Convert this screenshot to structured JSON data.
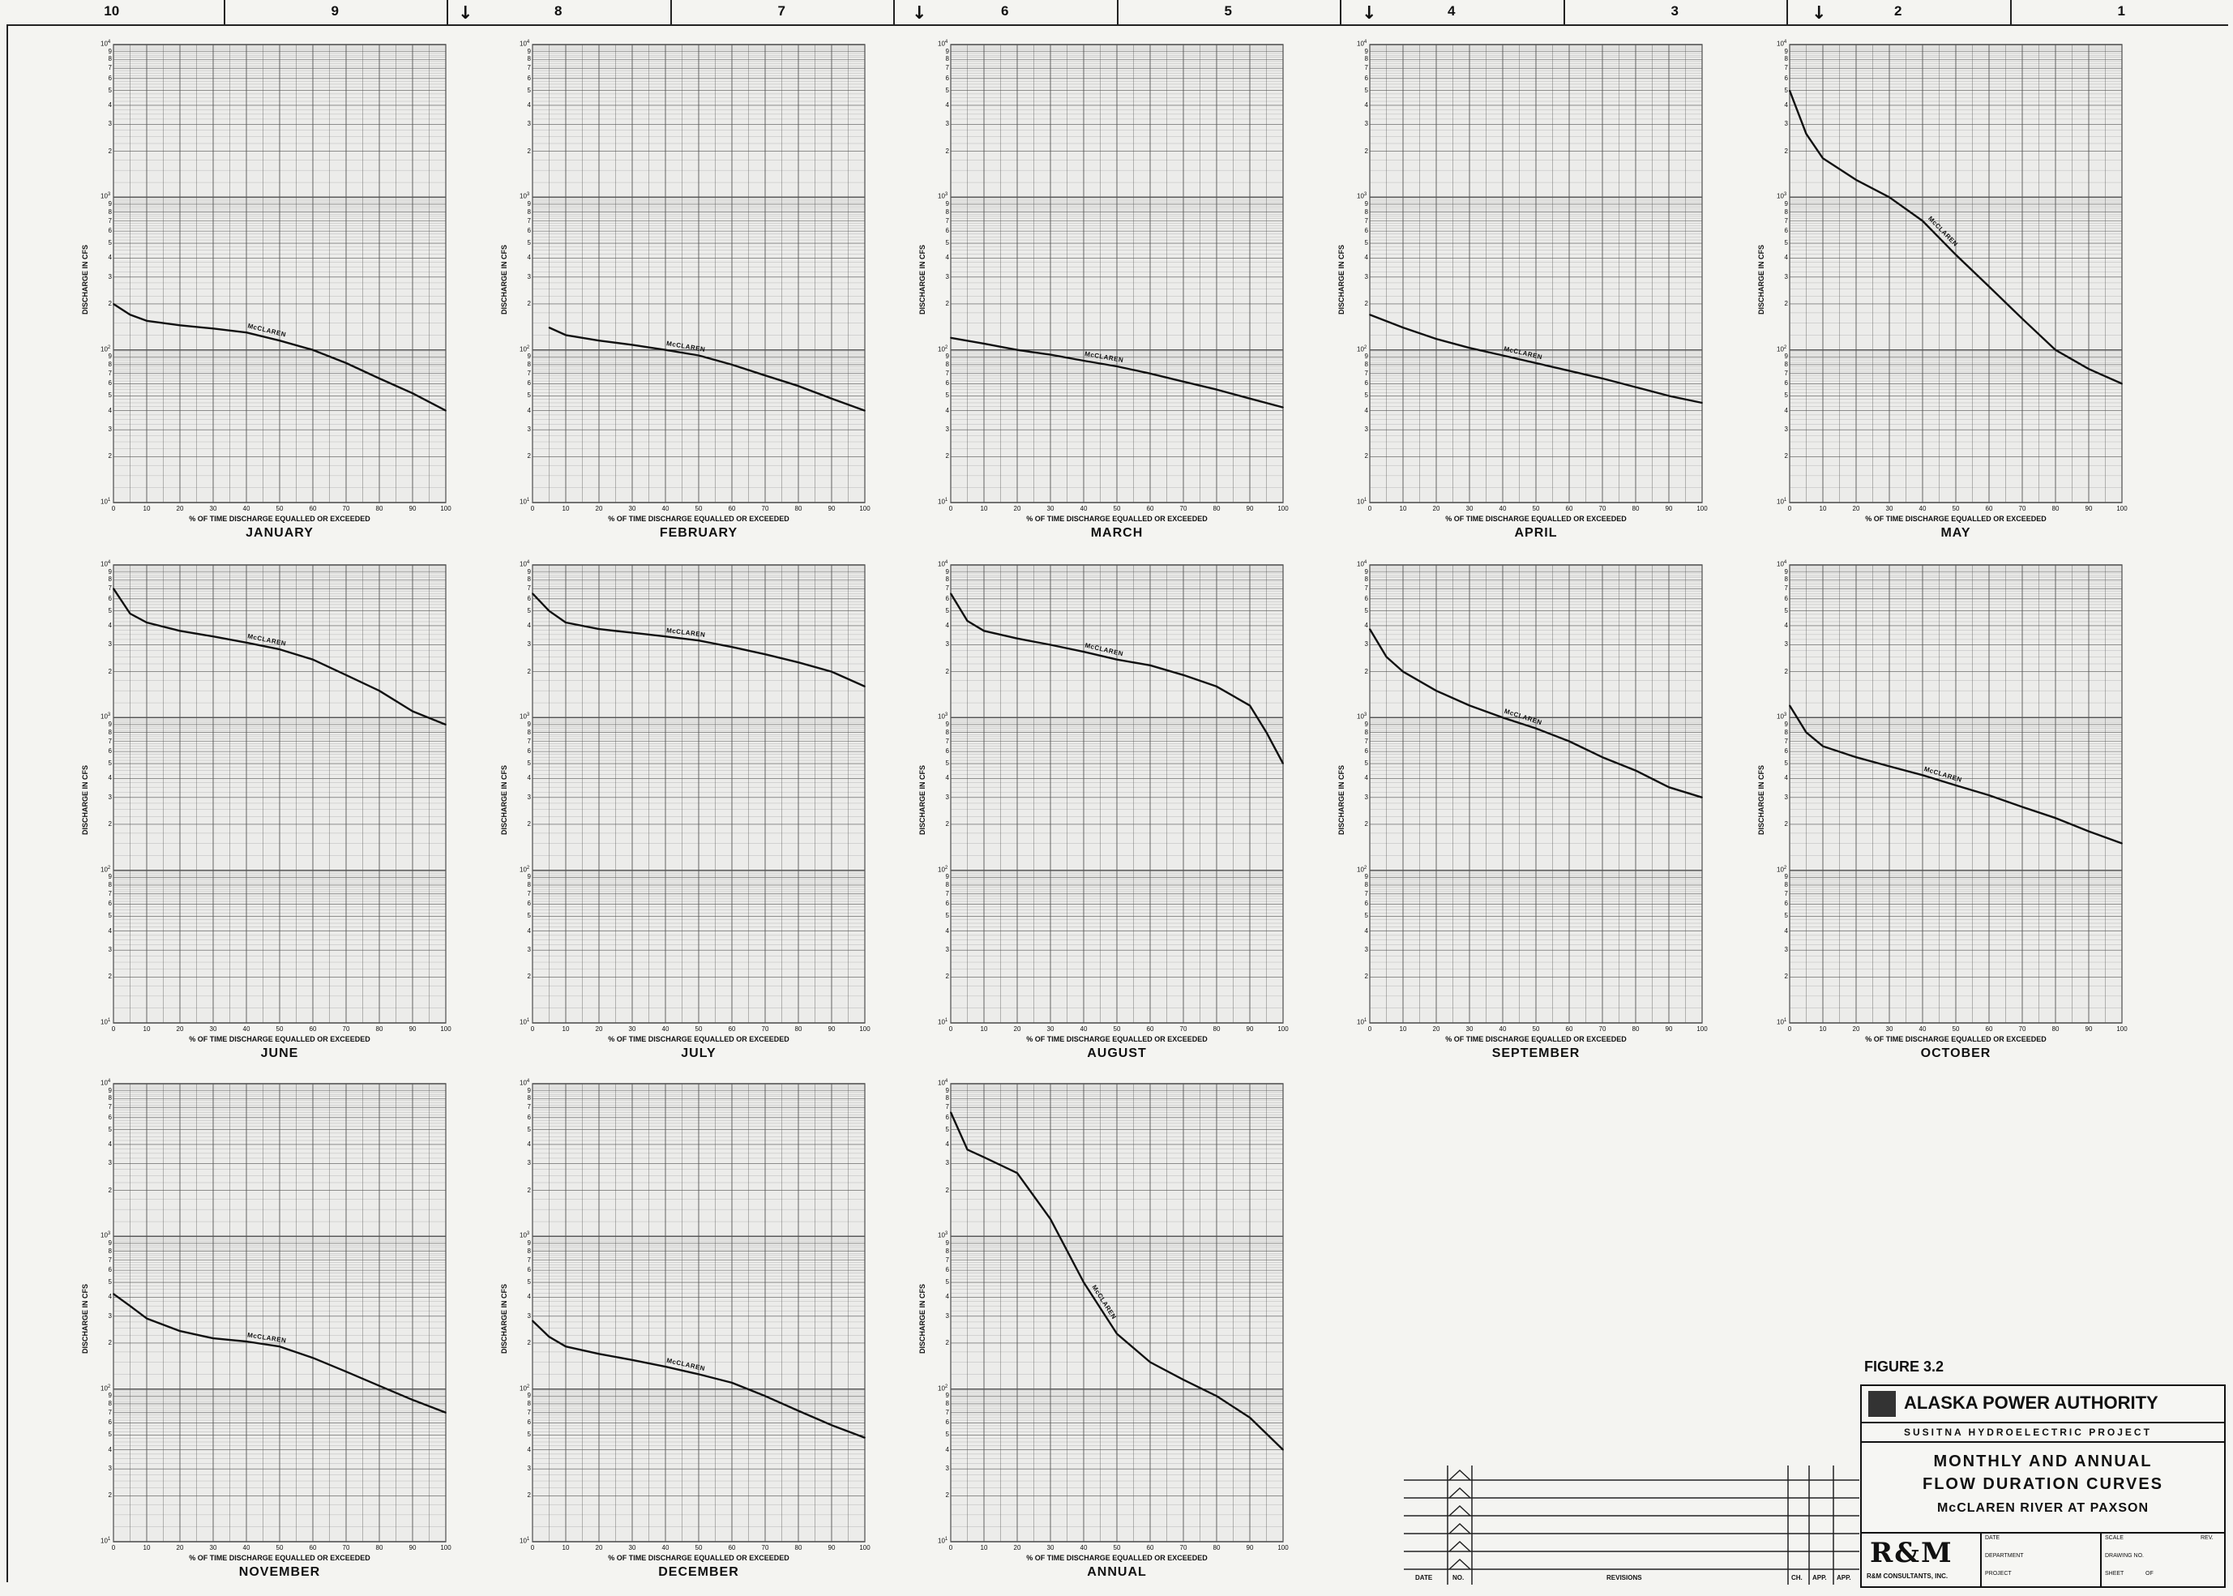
{
  "zones": [
    "10",
    "9",
    "8",
    "7",
    "6",
    "5",
    "4",
    "3",
    "2",
    "1"
  ],
  "common": {
    "x_axis_label": "% OF TIME DISCHARGE EQUALLED OR EXCEEDED",
    "y_axis_label": "DISCHARGE IN CFS",
    "curve_label": "McCLAREN",
    "x_ticks": [
      "0",
      "10",
      "20",
      "30",
      "40",
      "50",
      "60",
      "70",
      "80",
      "90",
      "100"
    ],
    "y_decade_ticks": [
      "2",
      "3",
      "4",
      "5",
      "6",
      "7",
      "8",
      "9"
    ]
  },
  "chart_data": [
    {
      "type": "line",
      "title": "JANUARY",
      "xlabel": "% OF TIME DISCHARGE EQUALLED OR EXCEEDED",
      "ylabel": "DISCHARGE IN CFS",
      "yscale": "log",
      "ylim": [
        10,
        10000
      ],
      "xlim": [
        0,
        100
      ],
      "series": [
        {
          "name": "McCLAREN",
          "x": [
            0,
            5,
            10,
            20,
            30,
            40,
            50,
            60,
            70,
            80,
            90,
            100
          ],
          "y": [
            200,
            170,
            155,
            145,
            138,
            130,
            115,
            100,
            82,
            65,
            52,
            40
          ]
        }
      ]
    },
    {
      "type": "line",
      "title": "FEBRUARY",
      "xlabel": "% OF TIME DISCHARGE EQUALLED OR EXCEEDED",
      "ylabel": "DISCHARGE IN CFS",
      "yscale": "log",
      "ylim": [
        10,
        10000
      ],
      "xlim": [
        0,
        100
      ],
      "series": [
        {
          "name": "McCLAREN",
          "x": [
            5,
            10,
            20,
            30,
            40,
            50,
            60,
            70,
            80,
            90,
            100
          ],
          "y": [
            140,
            125,
            115,
            108,
            100,
            92,
            80,
            68,
            58,
            48,
            40
          ]
        }
      ]
    },
    {
      "type": "line",
      "title": "MARCH",
      "xlabel": "% OF TIME DISCHARGE EQUALLED OR EXCEEDED",
      "ylabel": "DISCHARGE IN CFS",
      "yscale": "log",
      "ylim": [
        10,
        10000
      ],
      "xlim": [
        0,
        100
      ],
      "series": [
        {
          "name": "McCLAREN",
          "x": [
            0,
            10,
            20,
            30,
            40,
            50,
            60,
            70,
            80,
            90,
            100
          ],
          "y": [
            120,
            110,
            100,
            93,
            85,
            78,
            70,
            62,
            55,
            48,
            42
          ]
        }
      ]
    },
    {
      "type": "line",
      "title": "APRIL",
      "xlabel": "% OF TIME DISCHARGE EQUALLED OR EXCEEDED",
      "ylabel": "DISCHARGE IN CFS",
      "yscale": "log",
      "ylim": [
        10,
        10000
      ],
      "xlim": [
        0,
        100
      ],
      "series": [
        {
          "name": "McCLAREN",
          "x": [
            0,
            10,
            20,
            30,
            40,
            50,
            60,
            70,
            80,
            90,
            100
          ],
          "y": [
            170,
            140,
            118,
            103,
            92,
            82,
            73,
            65,
            57,
            50,
            45
          ]
        }
      ]
    },
    {
      "type": "line",
      "title": "MAY",
      "xlabel": "% OF TIME DISCHARGE EQUALLED OR EXCEEDED",
      "ylabel": "DISCHARGE IN CFS",
      "yscale": "log",
      "ylim": [
        10,
        10000
      ],
      "xlim": [
        0,
        100
      ],
      "series": [
        {
          "name": "McCLAREN",
          "x": [
            0,
            5,
            10,
            20,
            30,
            40,
            50,
            60,
            70,
            80,
            90,
            100
          ],
          "y": [
            5000,
            2600,
            1800,
            1300,
            1000,
            700,
            420,
            260,
            160,
            100,
            75,
            60
          ]
        }
      ]
    },
    {
      "type": "line",
      "title": "JUNE",
      "xlabel": "% OF TIME DISCHARGE EQUALLED OR EXCEEDED",
      "ylabel": "DISCHARGE IN CFS",
      "yscale": "log",
      "ylim": [
        10,
        10000
      ],
      "xlim": [
        0,
        100
      ],
      "series": [
        {
          "name": "McCLAREN",
          "x": [
            0,
            5,
            10,
            20,
            30,
            40,
            50,
            60,
            70,
            80,
            90,
            100
          ],
          "y": [
            7000,
            4800,
            4200,
            3700,
            3400,
            3100,
            2800,
            2400,
            1900,
            1500,
            1100,
            900
          ]
        }
      ]
    },
    {
      "type": "line",
      "title": "JULY",
      "xlabel": "% OF TIME DISCHARGE EQUALLED OR EXCEEDED",
      "ylabel": "DISCHARGE IN CFS",
      "yscale": "log",
      "ylim": [
        10,
        10000
      ],
      "xlim": [
        0,
        100
      ],
      "series": [
        {
          "name": "McCLAREN",
          "x": [
            0,
            5,
            10,
            20,
            30,
            40,
            50,
            60,
            70,
            80,
            90,
            100
          ],
          "y": [
            6500,
            5000,
            4200,
            3800,
            3600,
            3400,
            3200,
            2900,
            2600,
            2300,
            2000,
            1600
          ]
        }
      ]
    },
    {
      "type": "line",
      "title": "AUGUST",
      "xlabel": "% OF TIME DISCHARGE EQUALLED OR EXCEEDED",
      "ylabel": "DISCHARGE IN CFS",
      "yscale": "log",
      "ylim": [
        10,
        10000
      ],
      "xlim": [
        0,
        100
      ],
      "series": [
        {
          "name": "McCLAREN",
          "x": [
            0,
            5,
            10,
            20,
            30,
            40,
            50,
            60,
            70,
            80,
            90,
            95,
            100
          ],
          "y": [
            6500,
            4300,
            3700,
            3300,
            3000,
            2700,
            2400,
            2200,
            1900,
            1600,
            1200,
            800,
            500
          ]
        }
      ]
    },
    {
      "type": "line",
      "title": "SEPTEMBER",
      "xlabel": "% OF TIME DISCHARGE EQUALLED OR EXCEEDED",
      "ylabel": "DISCHARGE IN CFS",
      "yscale": "log",
      "ylim": [
        10,
        10000
      ],
      "xlim": [
        0,
        100
      ],
      "series": [
        {
          "name": "McCLAREN",
          "x": [
            0,
            5,
            10,
            20,
            30,
            40,
            50,
            60,
            70,
            80,
            90,
            100
          ],
          "y": [
            3800,
            2500,
            2000,
            1500,
            1200,
            1000,
            850,
            700,
            550,
            450,
            350,
            300
          ]
        }
      ]
    },
    {
      "type": "line",
      "title": "OCTOBER",
      "xlabel": "% OF TIME DISCHARGE EQUALLED OR EXCEEDED",
      "ylabel": "DISCHARGE IN CFS",
      "yscale": "log",
      "ylim": [
        10,
        10000
      ],
      "xlim": [
        0,
        100
      ],
      "series": [
        {
          "name": "McCLAREN",
          "x": [
            0,
            5,
            10,
            20,
            30,
            40,
            50,
            60,
            70,
            80,
            90,
            100
          ],
          "y": [
            1200,
            800,
            650,
            550,
            480,
            420,
            360,
            310,
            260,
            220,
            180,
            150
          ]
        }
      ]
    },
    {
      "type": "line",
      "title": "NOVEMBER",
      "xlabel": "% OF TIME DISCHARGE EQUALLED OR EXCEEDED",
      "ylabel": "DISCHARGE IN CFS",
      "yscale": "log",
      "ylim": [
        10,
        10000
      ],
      "xlim": [
        0,
        100
      ],
      "series": [
        {
          "name": "McCLAREN",
          "x": [
            0,
            5,
            10,
            20,
            30,
            40,
            50,
            60,
            70,
            80,
            90,
            100
          ],
          "y": [
            420,
            350,
            290,
            240,
            215,
            205,
            190,
            160,
            130,
            105,
            85,
            70
          ]
        }
      ]
    },
    {
      "type": "line",
      "title": "DECEMBER",
      "xlabel": "% OF TIME DISCHARGE EQUALLED OR EXCEEDED",
      "ylabel": "DISCHARGE IN CFS",
      "yscale": "log",
      "ylim": [
        10,
        10000
      ],
      "xlim": [
        0,
        100
      ],
      "series": [
        {
          "name": "McCLAREN",
          "x": [
            0,
            5,
            10,
            20,
            30,
            40,
            50,
            60,
            70,
            80,
            90,
            100
          ],
          "y": [
            280,
            220,
            190,
            170,
            155,
            140,
            125,
            110,
            90,
            72,
            58,
            48
          ]
        }
      ]
    },
    {
      "type": "line",
      "title": "ANNUAL",
      "xlabel": "% OF TIME DISCHARGE EQUALLED OR EXCEEDED",
      "ylabel": "DISCHARGE IN CFS",
      "yscale": "log",
      "ylim": [
        10,
        10000
      ],
      "xlim": [
        0,
        100
      ],
      "series": [
        {
          "name": "McCLAREN",
          "x": [
            0,
            5,
            10,
            20,
            30,
            40,
            50,
            60,
            70,
            80,
            90,
            100
          ],
          "y": [
            6500,
            3700,
            3300,
            2600,
            1300,
            500,
            230,
            150,
            115,
            90,
            65,
            40
          ]
        }
      ]
    }
  ],
  "figure_label": "FIGURE 3.2",
  "title_block": {
    "authority": "ALASKA POWER AUTHORITY",
    "project": "SUSITNA HYDROELECTRIC PROJECT",
    "title_line1": "MONTHLY AND ANNUAL",
    "title_line2": "FLOW DURATION CURVES",
    "title_line3": "McCLAREN RIVER AT PAXSON",
    "firm": "R&M CONSULTANTS, INC.",
    "fields": {
      "date": "DATE",
      "department": "DEPARTMENT",
      "project": "PROJECT",
      "scale": "SCALE",
      "drawing_no": "DRAWING NO.",
      "sheet": "SHEET",
      "of": "OF",
      "rev": "REV."
    }
  },
  "revisions": {
    "date": "DATE",
    "no": "NO.",
    "revisions": "REVISIONS",
    "ch": "CH.",
    "app1": "APP.",
    "app2": "APP."
  }
}
